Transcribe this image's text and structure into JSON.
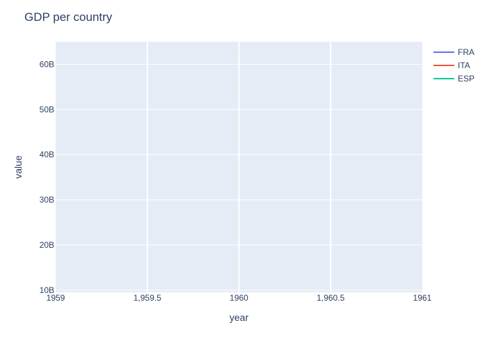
{
  "chart_data": {
    "type": "line",
    "title": "GDP per country",
    "xlabel": "year",
    "ylabel": "value",
    "xlim": [
      1959,
      1961
    ],
    "ylim": [
      9.5,
      65
    ],
    "x_ticks": [
      {
        "value": 1959,
        "label": "1959"
      },
      {
        "value": 1959.5,
        "label": "1,959.5"
      },
      {
        "value": 1960,
        "label": "1960"
      },
      {
        "value": 1960.5,
        "label": "1,960.5"
      },
      {
        "value": 1961,
        "label": "1961"
      }
    ],
    "y_ticks": [
      {
        "value": 10,
        "label": "10B"
      },
      {
        "value": 20,
        "label": "20B"
      },
      {
        "value": 30,
        "label": "30B"
      },
      {
        "value": 40,
        "label": "40B"
      },
      {
        "value": 50,
        "label": "50B"
      },
      {
        "value": 60,
        "label": "60B"
      }
    ],
    "series": [
      {
        "name": "FRA",
        "color": "#636efa",
        "x": [],
        "y": []
      },
      {
        "name": "ITA",
        "color": "#ef553b",
        "x": [],
        "y": []
      },
      {
        "name": "ESP",
        "color": "#00cc96",
        "x": [],
        "y": []
      }
    ],
    "grid": true,
    "legend_position": "top-right",
    "plot_background": "#e5ecf6",
    "grid_color": "#ffffff",
    "text_color": "#2a3f5f"
  }
}
